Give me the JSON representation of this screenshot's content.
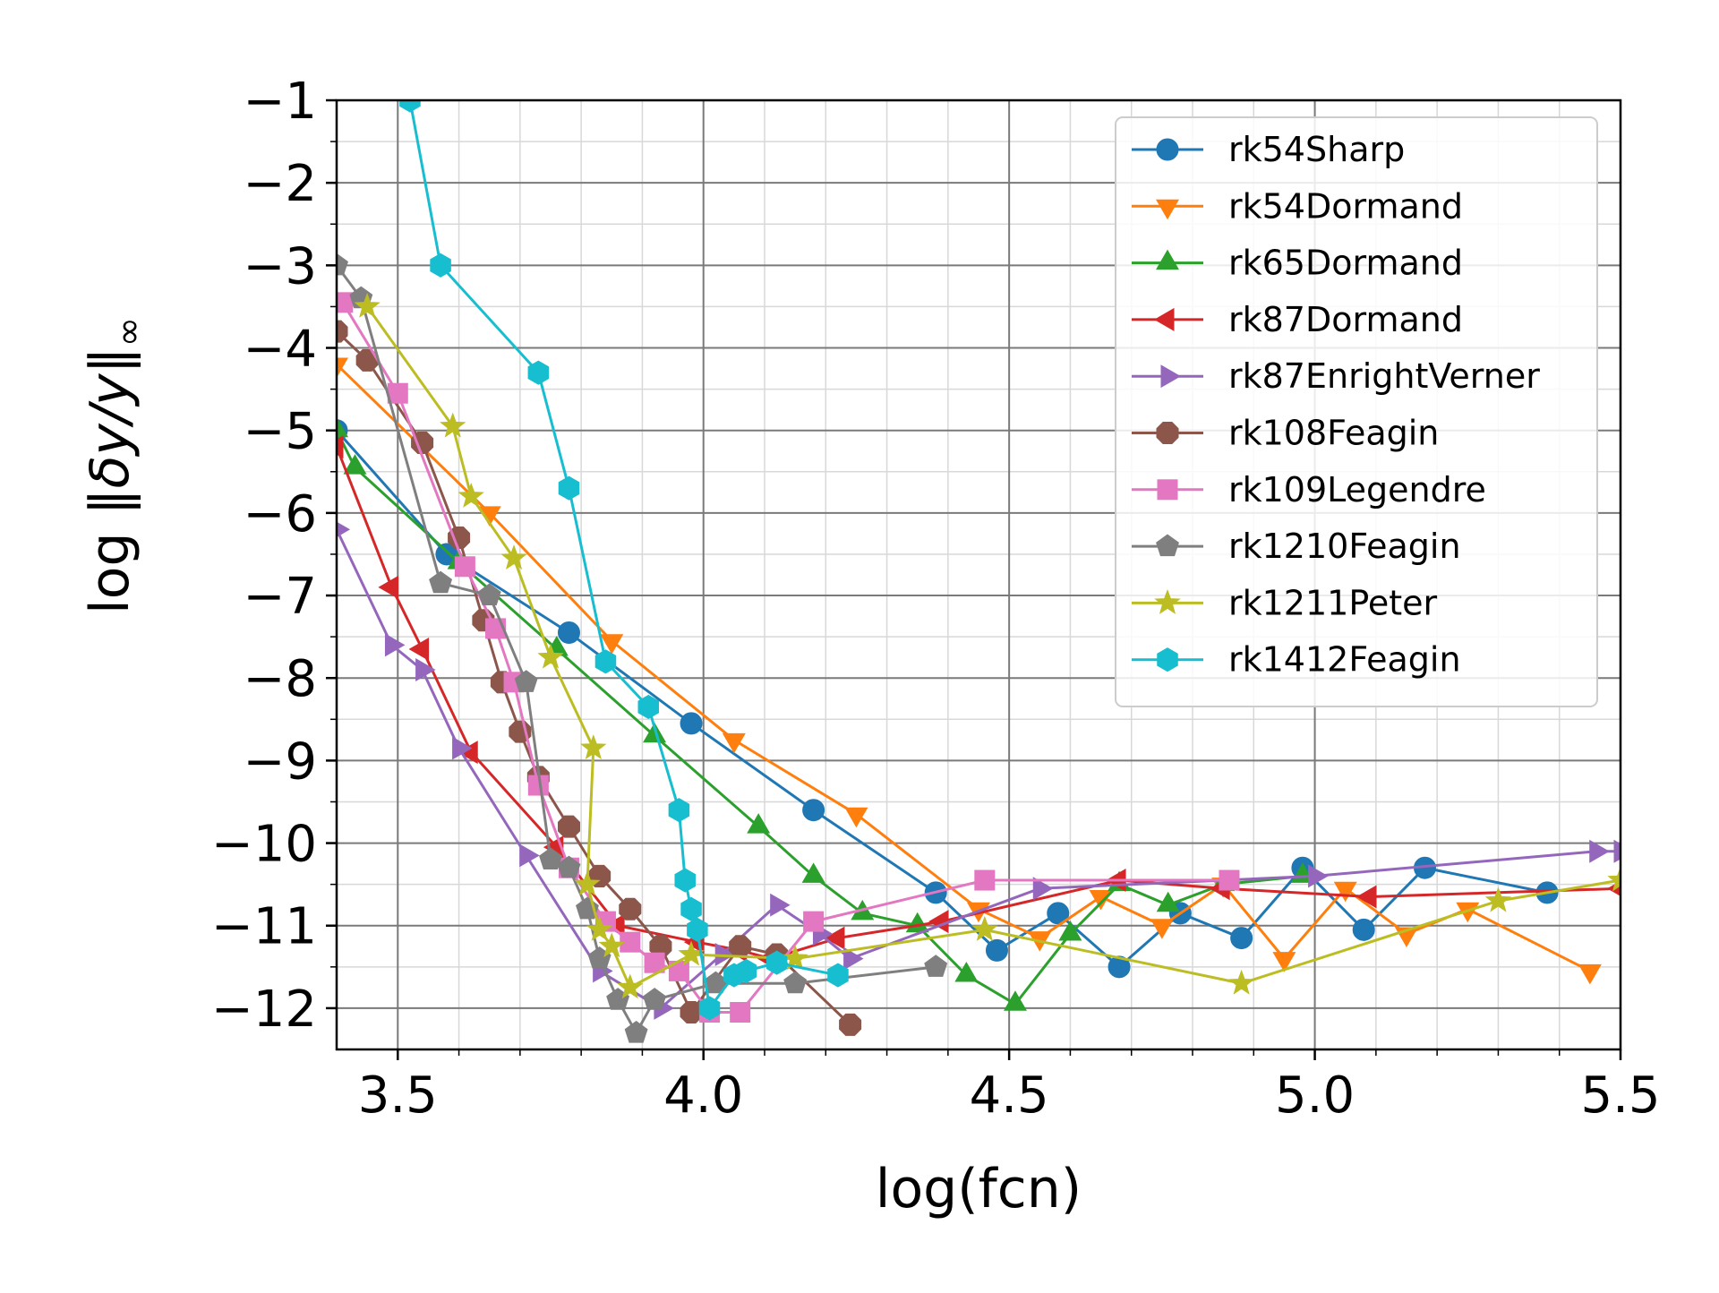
{
  "chart_data": {
    "type": "line",
    "xlabel": "log(fcn)",
    "ylabel": "log ‖δy/y‖∞",
    "ylabel_main": "log ‖",
    "ylabel_math": "δy/y",
    "ylabel_tail": "‖",
    "ylabel_sub": "∞",
    "xlim": [
      3.4,
      5.5
    ],
    "ylim": [
      -12.5,
      -1
    ],
    "xticks": [
      3.5,
      4.0,
      4.5,
      5.0,
      5.5
    ],
    "xtick_labels": [
      "3.5",
      "4.0",
      "4.5",
      "5.0",
      "5.5"
    ],
    "yticks": [
      -1,
      -2,
      -3,
      -4,
      -5,
      -6,
      -7,
      -8,
      -9,
      -10,
      -11,
      -12
    ],
    "ytick_labels": [
      "−1",
      "−2",
      "−3",
      "−4",
      "−5",
      "−6",
      "−7",
      "−8",
      "−9",
      "−10",
      "−11",
      "−12"
    ],
    "grid": true,
    "minor_grid": true,
    "legend_position": "top-right",
    "series": [
      {
        "name": "rk54Sharp",
        "color": "#1f77b4",
        "marker": "circle",
        "x": [
          3.4,
          3.58,
          3.78,
          3.98,
          4.18,
          4.38,
          4.48,
          4.58,
          4.68,
          4.78,
          4.88,
          4.98,
          5.08,
          5.18,
          5.38
        ],
        "y": [
          -5.0,
          -6.5,
          -7.45,
          -8.55,
          -9.6,
          -10.6,
          -11.3,
          -10.85,
          -11.5,
          -10.85,
          -11.15,
          -10.3,
          -11.05,
          -10.3,
          -10.6
        ]
      },
      {
        "name": "rk54Dormand",
        "color": "#ff7f0e",
        "marker": "triangle-down",
        "x": [
          3.4,
          3.65,
          3.85,
          4.05,
          4.25,
          4.45,
          4.55,
          4.65,
          4.75,
          4.85,
          4.95,
          5.05,
          5.15,
          5.25,
          5.45
        ],
        "y": [
          -4.2,
          -6.0,
          -7.55,
          -8.75,
          -9.65,
          -10.8,
          -11.15,
          -10.65,
          -11.0,
          -10.5,
          -11.4,
          -10.55,
          -11.1,
          -10.8,
          -11.55
        ]
      },
      {
        "name": "rk65Dormand",
        "color": "#2ca02c",
        "marker": "triangle-up",
        "x": [
          3.4,
          3.43,
          3.6,
          3.76,
          3.92,
          4.09,
          4.18,
          4.26,
          4.35,
          4.43,
          4.51,
          4.6,
          4.68,
          4.76,
          4.85,
          4.98
        ],
        "y": [
          -5.0,
          -5.45,
          -6.6,
          -7.65,
          -8.7,
          -9.8,
          -10.4,
          -10.85,
          -11.0,
          -11.6,
          -11.95,
          -11.1,
          -10.5,
          -10.75,
          -10.5,
          -10.4
        ]
      },
      {
        "name": "rk87Dormand",
        "color": "#d62728",
        "marker": "triangle-left",
        "x": [
          3.4,
          3.49,
          3.54,
          3.62,
          3.76,
          3.86,
          3.99,
          4.06,
          4.11,
          4.22,
          4.39,
          4.68,
          4.85,
          5.09,
          5.5
        ],
        "y": [
          -5.2,
          -6.9,
          -7.65,
          -8.9,
          -10.05,
          -11.0,
          -11.2,
          -11.3,
          -11.4,
          -11.15,
          -10.95,
          -10.45,
          -10.55,
          -10.65,
          -10.55
        ]
      },
      {
        "name": "rk87EnrightVerner",
        "color": "#9467bd",
        "marker": "triangle-right",
        "x": [
          3.4,
          3.49,
          3.54,
          3.6,
          3.71,
          3.83,
          3.93,
          4.03,
          4.12,
          4.19,
          4.24,
          4.55,
          5.0,
          5.46,
          5.5
        ],
        "y": [
          -6.2,
          -7.6,
          -7.9,
          -8.85,
          -10.15,
          -11.55,
          -12.0,
          -11.35,
          -10.75,
          -11.1,
          -11.4,
          -10.55,
          -10.4,
          -10.1,
          -10.1
        ]
      },
      {
        "name": "rk108Feagin",
        "color": "#8c564b",
        "marker": "octagon",
        "x": [
          3.4,
          3.45,
          3.54,
          3.6,
          3.64,
          3.67,
          3.7,
          3.73,
          3.78,
          3.83,
          3.88,
          3.93,
          3.98,
          4.06,
          4.12,
          4.24
        ],
        "y": [
          -3.8,
          -4.15,
          -5.15,
          -6.3,
          -7.3,
          -8.05,
          -8.65,
          -9.2,
          -9.8,
          -10.4,
          -10.8,
          -11.25,
          -12.05,
          -11.25,
          -11.35,
          -12.2
        ]
      },
      {
        "name": "rk109Legendre",
        "color": "#e377c2",
        "marker": "square",
        "x": [
          3.41,
          3.5,
          3.61,
          3.66,
          3.69,
          3.73,
          3.78,
          3.84,
          3.88,
          3.92,
          3.96,
          4.01,
          4.06,
          4.18,
          4.46,
          4.86
        ],
        "y": [
          -3.45,
          -4.55,
          -6.65,
          -7.4,
          -8.05,
          -9.3,
          -10.3,
          -10.95,
          -11.2,
          -11.45,
          -11.55,
          -12.05,
          -12.05,
          -10.95,
          -10.45,
          -10.45
        ]
      },
      {
        "name": "rk1210Feagin",
        "color": "#7f7f7f",
        "marker": "pentagon",
        "x": [
          3.4,
          3.44,
          3.57,
          3.65,
          3.71,
          3.75,
          3.78,
          3.81,
          3.83,
          3.86,
          3.89,
          3.92,
          4.02,
          4.15,
          4.38
        ],
        "y": [
          -3.0,
          -3.4,
          -6.85,
          -7.0,
          -8.05,
          -10.2,
          -10.3,
          -10.8,
          -11.4,
          -11.9,
          -12.3,
          -11.9,
          -11.7,
          -11.7,
          -11.5
        ]
      },
      {
        "name": "rk1211Peter",
        "color": "#bcbd22",
        "marker": "star",
        "x": [
          3.45,
          3.59,
          3.62,
          3.69,
          3.75,
          3.82,
          3.81,
          3.83,
          3.85,
          3.88,
          3.98,
          4.15,
          4.46,
          4.88,
          5.3,
          5.5
        ],
        "y": [
          -3.5,
          -4.95,
          -5.8,
          -6.55,
          -7.75,
          -8.85,
          -10.5,
          -11.05,
          -11.25,
          -11.75,
          -11.35,
          -11.4,
          -11.05,
          -11.7,
          -10.7,
          -10.45
        ]
      },
      {
        "name": "rk1412Feagin",
        "color": "#17becf",
        "marker": "hexagon",
        "x": [
          3.52,
          3.57,
          3.73,
          3.78,
          3.84,
          3.91,
          3.96,
          3.97,
          3.98,
          3.99,
          4.01,
          4.05,
          4.07,
          4.12,
          4.22
        ],
        "y": [
          -1.0,
          -3.0,
          -4.3,
          -5.7,
          -7.8,
          -8.35,
          -9.6,
          -10.45,
          -10.8,
          -11.05,
          -12.0,
          -11.6,
          -11.55,
          -11.45,
          -11.6
        ]
      }
    ]
  }
}
